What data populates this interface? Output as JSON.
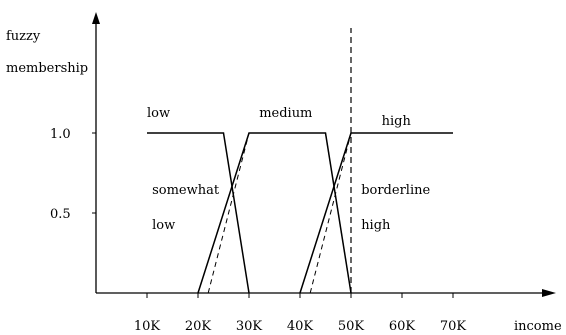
{
  "chart_data": {
    "type": "line",
    "ylabel_line1": "fuzzy",
    "ylabel_line2": "membership",
    "xlabel": "income",
    "x_ticks": [
      "10K",
      "20K",
      "30K",
      "40K",
      "50K",
      "60K",
      "70K"
    ],
    "x_tick_values": [
      10,
      20,
      30,
      40,
      50,
      60,
      70
    ],
    "y_ticks": [
      "1.0",
      "0.5"
    ],
    "y_tick_values": [
      1.0,
      0.5
    ],
    "xlim": [
      0,
      80
    ],
    "ylim": [
      0,
      1.25
    ],
    "series": [
      {
        "name": "low",
        "style": "solid",
        "x": [
          10,
          25,
          30
        ],
        "y": [
          1,
          1,
          0
        ]
      },
      {
        "name": "medium",
        "style": "solid",
        "x": [
          20,
          30,
          45,
          50
        ],
        "y": [
          0,
          1,
          1,
          0
        ]
      },
      {
        "name": "high",
        "style": "solid",
        "x": [
          40,
          50,
          70
        ],
        "y": [
          0,
          1,
          1
        ]
      }
    ],
    "hedge_series": [
      {
        "style": "dashed",
        "x": [
          20,
          30
        ],
        "y": [
          0,
          1
        ]
      },
      {
        "style": "dashed",
        "x": [
          22,
          30
        ],
        "y": [
          0,
          1
        ]
      },
      {
        "style": "dashed",
        "x": [
          40,
          50
        ],
        "y": [
          0,
          1
        ]
      },
      {
        "style": "dashed",
        "x": [
          42,
          50
        ],
        "y": [
          0,
          1
        ]
      },
      {
        "style": "dashed",
        "x": [
          45,
          50
        ],
        "y": [
          1,
          0
        ]
      }
    ],
    "vertical_line": {
      "x": 50,
      "style": "dashed"
    },
    "annotations": [
      {
        "text": "low",
        "x": 10,
        "y": 1.1
      },
      {
        "text": "medium",
        "x": 32,
        "y": 1.1
      },
      {
        "text": "high",
        "x": 56,
        "y": 1.05
      },
      {
        "text": "somewhat",
        "x": 11,
        "y": 0.62
      },
      {
        "text": "low",
        "x": 11,
        "y": 0.4
      },
      {
        "text": "borderline",
        "x": 52,
        "y": 0.62
      },
      {
        "text": "high",
        "x": 52,
        "y": 0.4
      }
    ],
    "grid": false,
    "line_color": "#000000"
  }
}
